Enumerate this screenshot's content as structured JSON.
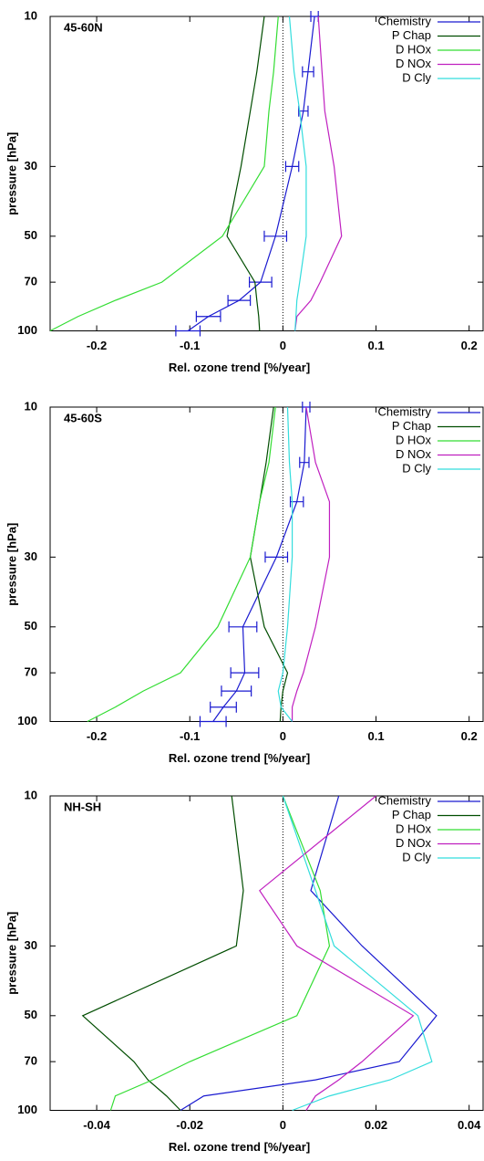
{
  "chart_data": [
    {
      "type": "line",
      "label": "45-60N",
      "xlabel": "Rel. ozone trend [%/year]",
      "ylabel": "pressure [hPa]",
      "y": [
        10,
        15,
        20,
        30,
        50,
        70,
        80,
        90,
        100
      ],
      "ylog": true,
      "yreversed": true,
      "xlim": [
        -0.25,
        0.215
      ],
      "ylim": [
        10,
        100
      ],
      "xticks": [
        -0.2,
        -0.1,
        0,
        0.1,
        0.2
      ],
      "yticks": [
        10,
        30,
        50,
        70,
        100
      ],
      "zero_line": true,
      "legend": "upper right",
      "series": [
        {
          "name": "Chemistry",
          "color": "#1a1ad0",
          "values": [
            0.034,
            0.027,
            0.022,
            0.01,
            -0.008,
            -0.024,
            -0.047,
            -0.08,
            -0.102
          ],
          "errors": [
            0.004,
            0.006,
            0.005,
            0.007,
            0.012,
            0.012,
            0.012,
            0.013,
            0.013
          ]
        },
        {
          "name": "P Chap",
          "color": "#004d00",
          "values": [
            -0.02,
            -0.028,
            -0.035,
            -0.045,
            -0.06,
            -0.03,
            -0.028,
            -0.026,
            -0.025
          ]
        },
        {
          "name": "D HOx",
          "color": "#33dd33",
          "values": [
            -0.005,
            -0.01,
            -0.015,
            -0.02,
            -0.065,
            -0.13,
            -0.18,
            -0.22,
            -0.25
          ]
        },
        {
          "name": "D NOx",
          "color": "#c020c0",
          "values": [
            0.038,
            0.042,
            0.045,
            0.055,
            0.063,
            0.04,
            0.03,
            0.015,
            0.013
          ]
        },
        {
          "name": "D Cly",
          "color": "#33dddd",
          "values": [
            0.007,
            0.012,
            0.018,
            0.025,
            0.025,
            0.018,
            0.015,
            0.014,
            0.013
          ]
        }
      ]
    },
    {
      "type": "line",
      "label": "45-60S",
      "xlabel": "Rel. ozone trend [%/year]",
      "ylabel": "pressure [hPa]",
      "y": [
        10,
        15,
        20,
        30,
        50,
        70,
        80,
        90,
        100
      ],
      "ylog": true,
      "yreversed": true,
      "xlim": [
        -0.25,
        0.215
      ],
      "ylim": [
        10,
        100
      ],
      "xticks": [
        -0.2,
        -0.1,
        0,
        0.1,
        0.2
      ],
      "yticks": [
        10,
        30,
        50,
        70,
        100
      ],
      "zero_line": true,
      "legend": "upper right",
      "series": [
        {
          "name": "Chemistry",
          "color": "#1a1ad0",
          "values": [
            0.025,
            0.023,
            0.015,
            -0.007,
            -0.043,
            -0.041,
            -0.05,
            -0.064,
            -0.075
          ],
          "errors": [
            0.004,
            0.005,
            0.007,
            0.012,
            0.015,
            0.015,
            0.016,
            0.014,
            0.014
          ]
        },
        {
          "name": "P Chap",
          "color": "#004d00",
          "values": [
            -0.01,
            -0.018,
            -0.025,
            -0.035,
            -0.02,
            0.005,
            0.0,
            -0.002,
            -0.003
          ]
        },
        {
          "name": "D HOx",
          "color": "#33dd33",
          "values": [
            -0.008,
            -0.015,
            -0.025,
            -0.035,
            -0.07,
            -0.11,
            -0.15,
            -0.18,
            -0.21
          ]
        },
        {
          "name": "D NOx",
          "color": "#c020c0",
          "values": [
            0.025,
            0.035,
            0.05,
            0.05,
            0.035,
            0.022,
            0.015,
            0.01,
            0.01
          ]
        },
        {
          "name": "D Cly",
          "color": "#33dddd",
          "values": [
            0.005,
            0.007,
            0.01,
            0.01,
            0.005,
            0.0,
            -0.005,
            -0.002,
            0.01
          ]
        }
      ]
    },
    {
      "type": "line",
      "label": "NH-SH",
      "xlabel": "Rel. ozone trend [%/year]",
      "ylabel": "pressure [hPa]",
      "y": [
        10,
        20,
        30,
        50,
        70,
        80,
        90,
        100
      ],
      "ylog": true,
      "yreversed": true,
      "xlim": [
        -0.05,
        0.043
      ],
      "ylim": [
        10,
        100
      ],
      "xticks": [
        -0.04,
        -0.02,
        0,
        0.02,
        0.04
      ],
      "yticks": [
        10,
        30,
        50,
        70,
        100
      ],
      "zero_line": true,
      "legend": "upper right",
      "series": [
        {
          "name": "Chemistry",
          "color": "#1a1ad0",
          "values": [
            0.012,
            0.006,
            0.017,
            0.033,
            0.025,
            0.007,
            -0.017,
            -0.022
          ]
        },
        {
          "name": "P Chap",
          "color": "#004d00",
          "values": [
            -0.011,
            -0.0085,
            -0.01,
            -0.043,
            -0.032,
            -0.029,
            -0.025,
            -0.022
          ]
        },
        {
          "name": "D HOx",
          "color": "#33dd33",
          "values": [
            0.0,
            0.008,
            0.01,
            0.003,
            -0.02,
            -0.028,
            -0.036,
            -0.037
          ]
        },
        {
          "name": "D NOx",
          "color": "#c020c0",
          "values": [
            0.02,
            -0.005,
            0.003,
            0.028,
            0.017,
            0.012,
            0.007,
            0.005
          ]
        },
        {
          "name": "D Cly",
          "color": "#33dddd",
          "values": [
            0.0,
            0.007,
            0.011,
            0.029,
            0.032,
            0.023,
            0.01,
            0.002
          ]
        }
      ]
    }
  ]
}
